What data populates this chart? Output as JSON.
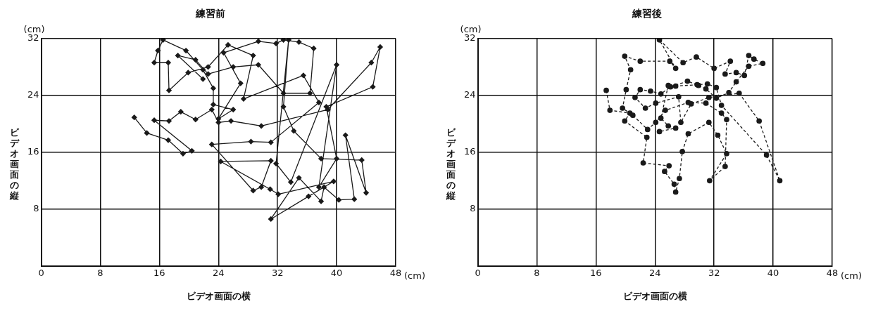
{
  "chart_data": [
    {
      "type": "line",
      "title": "練習前",
      "xlabel": "ビデオ画面の横",
      "ylabel": "ビデオ画面の縦",
      "annotations": [
        "(cm)",
        "(cm)"
      ],
      "xlim": [
        0,
        48
      ],
      "ylim": [
        0,
        32
      ],
      "xticks": [
        0,
        8,
        16,
        24,
        32,
        40,
        48
      ],
      "yticks": [
        {
          "value": 0,
          "label": null
        },
        8,
        16,
        24,
        32
      ],
      "grid": true,
      "legend": false,
      "marker": "diamond",
      "line_style": "solid",
      "series": [
        {
          "color": "#1a1a1a",
          "x": [
            12.6,
            14.3,
            17.2,
            19.2,
            20.4,
            15.3,
            17.3,
            18.9,
            20.9,
            23.1,
            24.0,
            25.7,
            29.8,
            38.8,
            44.7,
            45.9,
            44.9,
            38.6,
            40.0,
            37.6,
            40.0,
            33.8,
            31.8,
            33.5,
            32.8,
            34.2,
            37.9,
            43.4,
            44.0,
            41.2,
            42.4,
            40.3,
            38.3,
            37.9,
            34.9,
            31.1,
            36.2,
            39.6,
            32.1,
            31.0,
            24.3,
            31.1,
            29.8,
            28.7,
            23.1,
            28.4,
            31.1,
            37.6,
            35.5,
            27.4,
            28.7,
            25.3,
            22.6,
            19.9,
            17.3,
            17.2,
            15.3,
            15.8,
            16.5,
            19.6,
            21.9,
            23.3,
            23.3,
            26.0,
            24.0,
            27.0,
            24.7,
            29.4,
            31.8,
            32.8,
            34.9,
            36.9,
            36.4,
            32.8,
            29.4,
            26.0,
            22.6,
            20.9,
            18.5,
            21.9
          ],
          "values": [
            20.9,
            18.7,
            17.7,
            15.8,
            16.2,
            20.5,
            20.4,
            21.7,
            20.6,
            22.0,
            20.2,
            20.4,
            19.7,
            22.0,
            28.6,
            30.8,
            25.2,
            22.4,
            15.1,
            11.1,
            28.3,
            11.8,
            14.4,
            31.8,
            22.4,
            19.0,
            15.1,
            14.9,
            10.3,
            18.4,
            9.4,
            9.3,
            11.1,
            9.1,
            12.4,
            6.6,
            9.8,
            11.9,
            10.1,
            10.8,
            14.7,
            14.8,
            11.1,
            10.6,
            17.1,
            17.5,
            17.4,
            23.0,
            26.8,
            23.5,
            29.6,
            31.1,
            28.0,
            27.2,
            24.7,
            28.6,
            28.6,
            30.3,
            31.8,
            30.3,
            27.6,
            25.0,
            22.7,
            22.0,
            20.7,
            25.7,
            30.0,
            31.6,
            31.3,
            31.8,
            31.5,
            30.6,
            24.3,
            24.3,
            28.3,
            28.0,
            27.0,
            29.0,
            29.6,
            26.3
          ]
        }
      ]
    },
    {
      "type": "line",
      "title": "練習後",
      "xlabel": "ビデオ画面の横",
      "ylabel": "ビデオ画面の縦",
      "annotations": [
        "(cm)",
        "(cm)"
      ],
      "xlim": [
        0,
        48
      ],
      "ylim": [
        0,
        32
      ],
      "xticks": [
        0,
        8,
        16,
        24,
        32,
        40,
        48
      ],
      "yticks": [
        {
          "value": 0,
          "label": null
        },
        8,
        16,
        24,
        32
      ],
      "grid": true,
      "legend": false,
      "marker": "circle",
      "line_style": "dashed",
      "series": [
        {
          "color": "#1a1a1a",
          "x": [
            17.4,
            17.9,
            20.6,
            19.9,
            22.9,
            22.4,
            25.9,
            25.3,
            26.6,
            26.8,
            27.3,
            27.7,
            28.5,
            31.3,
            32.5,
            33.7,
            31.4,
            33.5,
            33.7,
            33.0,
            30.9,
            28.5,
            25.4,
            24.1,
            23.0,
            21.0,
            19.6,
            20.1,
            20.7,
            19.9,
            22.0,
            26.0,
            26.8,
            24.6,
            27.8,
            29.6,
            32.0,
            34.2,
            33.5,
            35.0,
            36.1,
            36.7,
            37.4,
            38.6,
            36.7,
            35.0,
            34.0,
            32.3,
            30.9,
            29.9,
            28.4,
            26.1,
            24.8,
            23.4,
            22.0,
            21.3,
            22.7,
            24.1,
            27.2,
            27.5,
            28.9,
            31.3,
            35.4,
            38.1,
            40.9,
            39.1,
            33.0,
            32.3,
            31.1,
            29.7,
            26.8,
            25.8,
            24.8,
            25.8,
            26.8,
            24.6
          ],
          "values": [
            24.7,
            21.9,
            21.5,
            20.4,
            18.1,
            14.5,
            14.1,
            13.3,
            11.5,
            10.4,
            12.3,
            16.1,
            18.6,
            20.2,
            18.4,
            15.8,
            12.0,
            14.0,
            20.6,
            21.5,
            22.9,
            23.0,
            21.9,
            20.2,
            19.2,
            21.2,
            22.2,
            24.8,
            27.6,
            29.5,
            28.8,
            28.8,
            27.8,
            31.8,
            28.6,
            29.4,
            27.8,
            28.8,
            27.0,
            27.2,
            26.8,
            29.6,
            29.1,
            28.5,
            28.1,
            25.9,
            24.4,
            23.6,
            24.9,
            25.4,
            26.0,
            25.2,
            24.2,
            24.6,
            24.8,
            23.7,
            22.2,
            22.9,
            23.8,
            20.2,
            22.8,
            23.7,
            24.3,
            20.4,
            12.0,
            15.6,
            22.6,
            25.1,
            25.6,
            25.5,
            25.3,
            25.4,
            20.8,
            19.7,
            19.4,
            18.9
          ]
        }
      ]
    }
  ]
}
